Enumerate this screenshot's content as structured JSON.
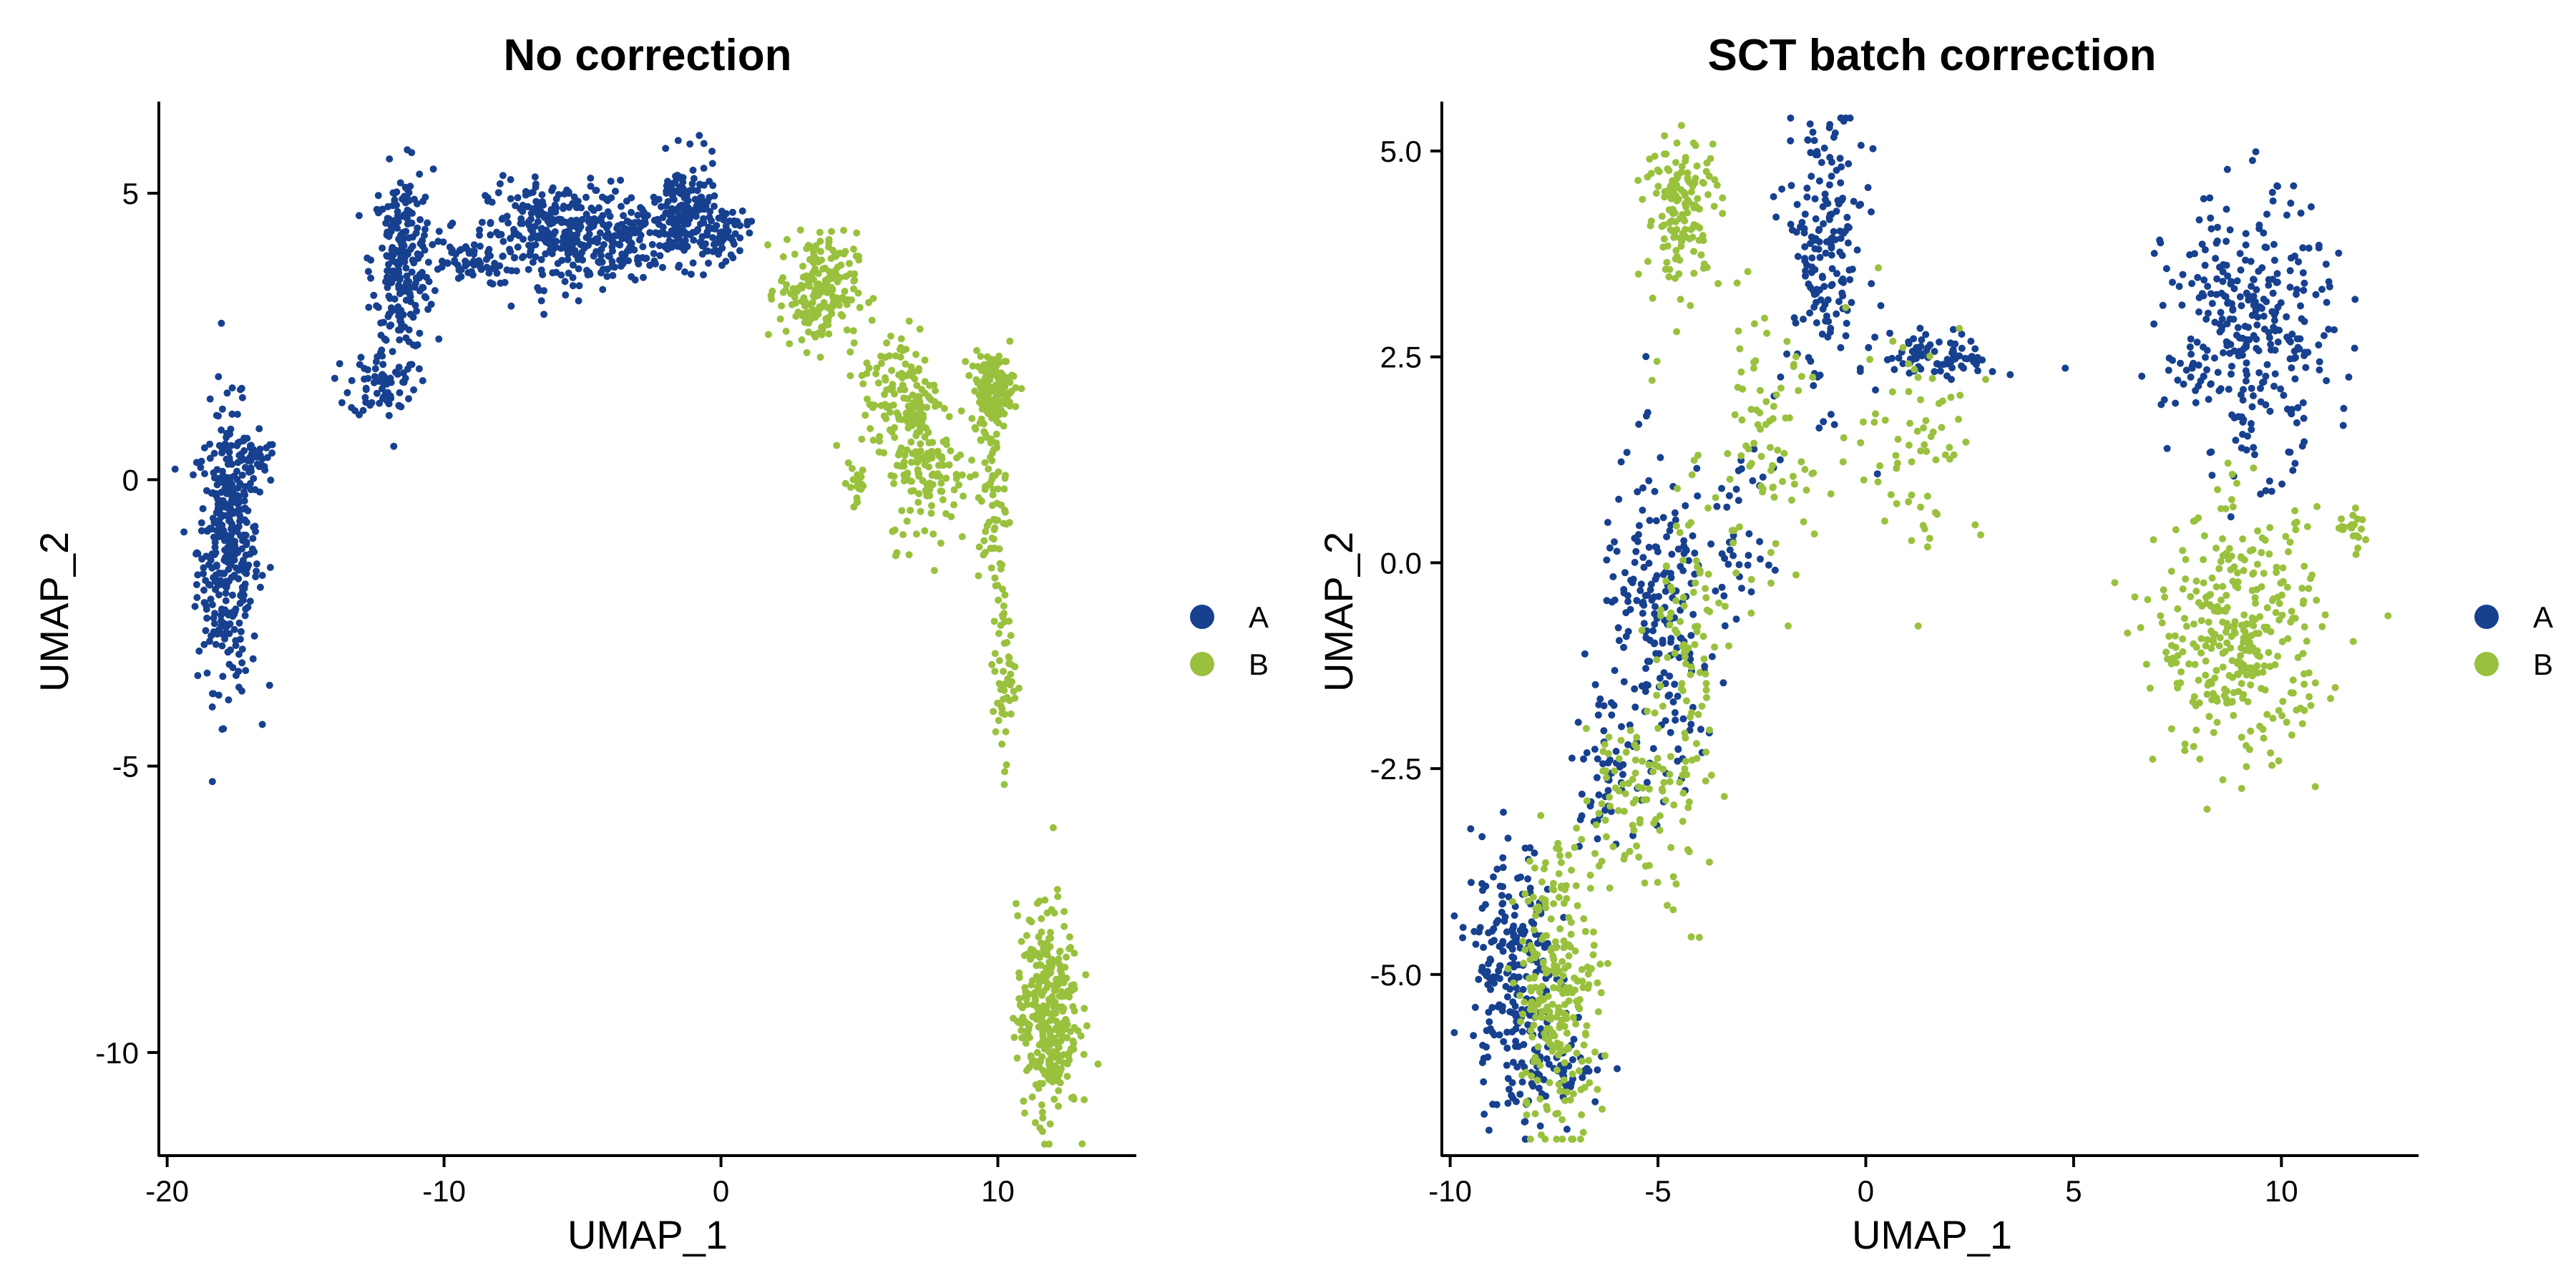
{
  "colors": {
    "A": "#17408f",
    "B": "#99c13e"
  },
  "chart_data": [
    {
      "type": "scatter",
      "title": "No correction",
      "xlabel": "UMAP_1",
      "ylabel": "UMAP_2",
      "xlim": [
        -20.3,
        15.0
      ],
      "ylim": [
        -11.8,
        6.6
      ],
      "xticks": [
        -20,
        -10,
        0,
        10
      ],
      "xtick_labels": [
        "-20",
        "-10",
        "0",
        "10"
      ],
      "yticks": [
        -10,
        -5,
        0,
        5
      ],
      "ytick_labels": [
        "-10",
        "-5",
        "0",
        "5"
      ],
      "grid": false,
      "legend": {
        "placement": "right",
        "entries": [
          "A",
          "B"
        ]
      },
      "series": [
        {
          "name": "A",
          "color": "#17408f",
          "clusters": [
            {
              "cx": -17.8,
              "cy": -1.2,
              "sx": 0.55,
              "sy": 1.2,
              "n": 380
            },
            {
              "cx": -17.0,
              "cy": 0.3,
              "sx": 0.5,
              "sy": 0.2,
              "n": 40
            },
            {
              "cx": -11.5,
              "cy": 3.8,
              "sx": 0.55,
              "sy": 0.8,
              "n": 240
            },
            {
              "cx": -12.2,
              "cy": 1.7,
              "sx": 0.6,
              "sy": 0.3,
              "n": 70
            },
            {
              "cx": -9.3,
              "cy": 3.8,
              "sx": 0.9,
              "sy": 0.2,
              "n": 60
            },
            {
              "cx": -5.8,
              "cy": 4.3,
              "sx": 1.3,
              "sy": 0.45,
              "n": 300
            },
            {
              "cx": -3.0,
              "cy": 4.2,
              "sx": 1.0,
              "sy": 0.3,
              "n": 120
            },
            {
              "cx": -1.3,
              "cy": 4.7,
              "sx": 0.6,
              "sy": 0.45,
              "n": 150
            },
            {
              "cx": 0.0,
              "cy": 4.3,
              "sx": 0.5,
              "sy": 0.25,
              "n": 60
            }
          ]
        },
        {
          "name": "B",
          "color": "#99c13e",
          "clusters": [
            {
              "cx": 3.5,
              "cy": 3.3,
              "sx": 0.7,
              "sy": 0.5,
              "n": 200
            },
            {
              "cx": 6.5,
              "cy": 1.5,
              "sx": 0.7,
              "sy": 0.6,
              "n": 130
            },
            {
              "cx": 7.5,
              "cy": 0.2,
              "sx": 0.7,
              "sy": 0.7,
              "n": 130
            },
            {
              "cx": 9.8,
              "cy": 1.6,
              "sx": 0.4,
              "sy": 0.3,
              "n": 140
            },
            {
              "cx": 9.8,
              "cy": -0.2,
              "sx": 0.25,
              "sy": 0.9,
              "n": 70
            },
            {
              "cx": 10.2,
              "cy": -3.3,
              "sx": 0.2,
              "sy": 0.8,
              "n": 60
            },
            {
              "cx": 4.9,
              "cy": -0.1,
              "sx": 0.2,
              "sy": 0.3,
              "n": 20
            },
            {
              "cx": 11.8,
              "cy": -9.3,
              "sx": 0.55,
              "sy": 0.9,
              "n": 330
            }
          ]
        }
      ]
    },
    {
      "type": "scatter",
      "title": "SCT batch correction",
      "xlabel": "UMAP_1",
      "ylabel": "UMAP_2",
      "xlim": [
        -10.2,
        13.3
      ],
      "ylim": [
        -7.2,
        5.6
      ],
      "xticks": [
        -10,
        -5,
        0,
        5,
        10
      ],
      "xtick_labels": [
        "-10",
        "-5",
        "0",
        "5",
        "10"
      ],
      "yticks": [
        -5,
        -2.5,
        0,
        2.5,
        5
      ],
      "ytick_labels": [
        "-5.0",
        "-2.5",
        "0.0",
        "2.5",
        "5.0"
      ],
      "grid": false,
      "legend": {
        "placement": "right",
        "entries": [
          "A",
          "B"
        ]
      },
      "series": [
        {
          "name": "A",
          "color": "#17408f",
          "clusters": [
            {
              "cx": -8.5,
              "cy": -5.0,
              "sx": 0.5,
              "sy": 0.8,
              "n": 240
            },
            {
              "cx": -7.4,
              "cy": -6.2,
              "sx": 0.6,
              "sy": 0.25,
              "n": 60
            },
            {
              "cx": -5.0,
              "cy": -0.8,
              "sx": 0.7,
              "sy": 1.0,
              "n": 200
            },
            {
              "cx": -6.3,
              "cy": -2.5,
              "sx": 0.4,
              "sy": 0.4,
              "n": 50
            },
            {
              "cx": -3.0,
              "cy": 0.2,
              "sx": 0.4,
              "sy": 0.5,
              "n": 40
            },
            {
              "cx": -1.0,
              "cy": 3.8,
              "sx": 0.5,
              "sy": 0.9,
              "n": 180
            },
            {
              "cx": 1.8,
              "cy": 2.5,
              "sx": 0.7,
              "sy": 0.15,
              "n": 80
            },
            {
              "cx": 9.2,
              "cy": 2.8,
              "sx": 1.0,
              "sy": 0.8,
              "n": 330
            }
          ]
        },
        {
          "name": "B",
          "color": "#99c13e",
          "clusters": [
            {
              "cx": -7.4,
              "cy": -5.2,
              "sx": 0.5,
              "sy": 0.9,
              "n": 260
            },
            {
              "cx": -5.8,
              "cy": -2.8,
              "sx": 0.5,
              "sy": 0.5,
              "n": 70
            },
            {
              "cx": -4.4,
              "cy": -1.5,
              "sx": 0.5,
              "sy": 1.3,
              "n": 120
            },
            {
              "cx": -2.5,
              "cy": 1.3,
              "sx": 0.6,
              "sy": 0.8,
              "n": 80
            },
            {
              "cx": -4.4,
              "cy": 4.3,
              "sx": 0.45,
              "sy": 0.45,
              "n": 150
            },
            {
              "cx": 1.2,
              "cy": 1.6,
              "sx": 0.8,
              "sy": 0.7,
              "n": 70
            },
            {
              "cx": 9.0,
              "cy": -0.9,
              "sx": 1.0,
              "sy": 0.75,
              "n": 340
            },
            {
              "cx": 11.7,
              "cy": 0.4,
              "sx": 0.25,
              "sy": 0.15,
              "n": 20
            }
          ]
        }
      ]
    }
  ]
}
